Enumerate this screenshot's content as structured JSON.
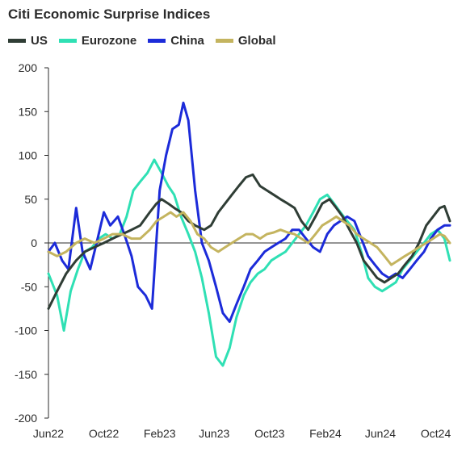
{
  "chart_data": {
    "type": "line",
    "title": "Citi Economic Surprise Indices",
    "xlabel": "",
    "ylabel": "",
    "ylim": [
      -200,
      200
    ],
    "yticks": [
      200,
      150,
      100,
      50,
      0,
      -50,
      -100,
      -150,
      -200
    ],
    "xticks": [
      "Jun22",
      "Oct22",
      "Feb23",
      "Jun23",
      "Oct23",
      "Feb24",
      "Jun24",
      "Oct24"
    ],
    "xrange": [
      "Jun22",
      "Nov24"
    ],
    "grid": false,
    "legend_position": "top",
    "series": [
      {
        "name": "US",
        "color": "#2f3d35",
        "points": [
          [
            "2022-06-01",
            -75
          ],
          [
            "2022-06-20",
            -55
          ],
          [
            "2022-07-10",
            -35
          ],
          [
            "2022-08-01",
            -20
          ],
          [
            "2022-08-20",
            -10
          ],
          [
            "2022-09-10",
            -5
          ],
          [
            "2022-10-01",
            0
          ],
          [
            "2022-10-20",
            5
          ],
          [
            "2022-11-10",
            10
          ],
          [
            "2022-12-01",
            15
          ],
          [
            "2022-12-20",
            20
          ],
          [
            "2023-01-10",
            35
          ],
          [
            "2023-01-25",
            45
          ],
          [
            "2023-02-05",
            50
          ],
          [
            "2023-02-20",
            45
          ],
          [
            "2023-03-05",
            40
          ],
          [
            "2023-03-20",
            35
          ],
          [
            "2023-04-05",
            25
          ],
          [
            "2023-04-20",
            20
          ],
          [
            "2023-05-10",
            15
          ],
          [
            "2023-05-25",
            20
          ],
          [
            "2023-06-10",
            35
          ],
          [
            "2023-06-25",
            45
          ],
          [
            "2023-07-10",
            55
          ],
          [
            "2023-07-25",
            65
          ],
          [
            "2023-08-10",
            75
          ],
          [
            "2023-08-25",
            78
          ],
          [
            "2023-09-10",
            65
          ],
          [
            "2023-09-25",
            60
          ],
          [
            "2023-10-10",
            55
          ],
          [
            "2023-10-25",
            50
          ],
          [
            "2023-11-10",
            45
          ],
          [
            "2023-11-25",
            40
          ],
          [
            "2023-12-10",
            25
          ],
          [
            "2023-12-25",
            15
          ],
          [
            "2024-01-10",
            30
          ],
          [
            "2024-01-25",
            45
          ],
          [
            "2024-02-10",
            50
          ],
          [
            "2024-02-25",
            40
          ],
          [
            "2024-03-10",
            30
          ],
          [
            "2024-03-25",
            15
          ],
          [
            "2024-04-10",
            0
          ],
          [
            "2024-04-25",
            -20
          ],
          [
            "2024-05-10",
            -30
          ],
          [
            "2024-05-25",
            -40
          ],
          [
            "2024-06-10",
            -45
          ],
          [
            "2024-06-25",
            -40
          ],
          [
            "2024-07-10",
            -35
          ],
          [
            "2024-07-25",
            -25
          ],
          [
            "2024-08-10",
            -15
          ],
          [
            "2024-08-25",
            0
          ],
          [
            "2024-09-10",
            20
          ],
          [
            "2024-09-25",
            30
          ],
          [
            "2024-10-10",
            40
          ],
          [
            "2024-10-20",
            42
          ],
          [
            "2024-11-01",
            25
          ]
        ]
      },
      {
        "name": "Eurozone",
        "color": "#2fe0b4",
        "points": [
          [
            "2022-06-01",
            -35
          ],
          [
            "2022-06-20",
            -60
          ],
          [
            "2022-07-05",
            -100
          ],
          [
            "2022-07-20",
            -55
          ],
          [
            "2022-08-05",
            -30
          ],
          [
            "2022-08-20",
            -10
          ],
          [
            "2022-09-05",
            -5
          ],
          [
            "2022-09-20",
            5
          ],
          [
            "2022-10-05",
            10
          ],
          [
            "2022-10-20",
            5
          ],
          [
            "2022-11-05",
            10
          ],
          [
            "2022-11-20",
            30
          ],
          [
            "2022-12-05",
            60
          ],
          [
            "2022-12-20",
            70
          ],
          [
            "2023-01-05",
            80
          ],
          [
            "2023-01-20",
            95
          ],
          [
            "2023-02-05",
            80
          ],
          [
            "2023-02-20",
            65
          ],
          [
            "2023-03-05",
            55
          ],
          [
            "2023-03-20",
            30
          ],
          [
            "2023-04-05",
            10
          ],
          [
            "2023-04-20",
            -10
          ],
          [
            "2023-05-05",
            -40
          ],
          [
            "2023-05-20",
            -80
          ],
          [
            "2023-06-05",
            -130
          ],
          [
            "2023-06-20",
            -140
          ],
          [
            "2023-07-05",
            -120
          ],
          [
            "2023-07-20",
            -85
          ],
          [
            "2023-08-05",
            -60
          ],
          [
            "2023-08-20",
            -45
          ],
          [
            "2023-09-05",
            -35
          ],
          [
            "2023-09-20",
            -30
          ],
          [
            "2023-10-05",
            -20
          ],
          [
            "2023-10-20",
            -15
          ],
          [
            "2023-11-05",
            -10
          ],
          [
            "2023-11-20",
            0
          ],
          [
            "2023-12-05",
            10
          ],
          [
            "2023-12-20",
            20
          ],
          [
            "2024-01-05",
            35
          ],
          [
            "2024-01-20",
            50
          ],
          [
            "2024-02-05",
            55
          ],
          [
            "2024-02-20",
            45
          ],
          [
            "2024-03-05",
            35
          ],
          [
            "2024-03-20",
            25
          ],
          [
            "2024-04-05",
            15
          ],
          [
            "2024-04-20",
            -10
          ],
          [
            "2024-05-05",
            -40
          ],
          [
            "2024-05-20",
            -50
          ],
          [
            "2024-06-05",
            -55
          ],
          [
            "2024-06-20",
            -50
          ],
          [
            "2024-07-05",
            -45
          ],
          [
            "2024-07-20",
            -30
          ],
          [
            "2024-08-05",
            -20
          ],
          [
            "2024-08-20",
            -10
          ],
          [
            "2024-09-05",
            0
          ],
          [
            "2024-09-20",
            10
          ],
          [
            "2024-10-05",
            15
          ],
          [
            "2024-10-20",
            5
          ],
          [
            "2024-11-01",
            -20
          ]
        ]
      },
      {
        "name": "China",
        "color": "#1c2bd9",
        "points": [
          [
            "2022-06-01",
            -10
          ],
          [
            "2022-06-15",
            0
          ],
          [
            "2022-07-01",
            -20
          ],
          [
            "2022-07-15",
            -30
          ],
          [
            "2022-08-01",
            40
          ],
          [
            "2022-08-15",
            -10
          ],
          [
            "2022-09-01",
            -30
          ],
          [
            "2022-09-15",
            0
          ],
          [
            "2022-10-01",
            35
          ],
          [
            "2022-10-15",
            20
          ],
          [
            "2022-11-01",
            30
          ],
          [
            "2022-11-15",
            10
          ],
          [
            "2022-12-01",
            -15
          ],
          [
            "2022-12-15",
            -50
          ],
          [
            "2023-01-01",
            -60
          ],
          [
            "2023-01-15",
            -75
          ],
          [
            "2023-02-01",
            60
          ],
          [
            "2023-02-15",
            100
          ],
          [
            "2023-03-01",
            130
          ],
          [
            "2023-03-15",
            135
          ],
          [
            "2023-03-25",
            160
          ],
          [
            "2023-04-05",
            140
          ],
          [
            "2023-04-20",
            60
          ],
          [
            "2023-05-05",
            0
          ],
          [
            "2023-05-20",
            -20
          ],
          [
            "2023-06-05",
            -50
          ],
          [
            "2023-06-20",
            -80
          ],
          [
            "2023-07-05",
            -90
          ],
          [
            "2023-07-20",
            -70
          ],
          [
            "2023-08-05",
            -50
          ],
          [
            "2023-08-20",
            -30
          ],
          [
            "2023-09-05",
            -20
          ],
          [
            "2023-09-20",
            -10
          ],
          [
            "2023-10-05",
            -5
          ],
          [
            "2023-10-20",
            0
          ],
          [
            "2023-11-05",
            5
          ],
          [
            "2023-11-20",
            15
          ],
          [
            "2023-12-05",
            15
          ],
          [
            "2023-12-20",
            5
          ],
          [
            "2024-01-05",
            -5
          ],
          [
            "2024-01-20",
            -10
          ],
          [
            "2024-02-05",
            10
          ],
          [
            "2024-02-20",
            20
          ],
          [
            "2024-03-05",
            25
          ],
          [
            "2024-03-20",
            30
          ],
          [
            "2024-04-05",
            25
          ],
          [
            "2024-04-20",
            5
          ],
          [
            "2024-05-05",
            -15
          ],
          [
            "2024-05-20",
            -25
          ],
          [
            "2024-06-05",
            -35
          ],
          [
            "2024-06-20",
            -40
          ],
          [
            "2024-07-05",
            -35
          ],
          [
            "2024-07-20",
            -40
          ],
          [
            "2024-08-05",
            -30
          ],
          [
            "2024-08-20",
            -20
          ],
          [
            "2024-09-05",
            -10
          ],
          [
            "2024-09-20",
            5
          ],
          [
            "2024-10-05",
            15
          ],
          [
            "2024-10-20",
            20
          ],
          [
            "2024-11-01",
            20
          ]
        ]
      },
      {
        "name": "Global",
        "color": "#c4b45f",
        "points": [
          [
            "2022-06-01",
            -10
          ],
          [
            "2022-06-20",
            -15
          ],
          [
            "2022-07-10",
            -10
          ],
          [
            "2022-08-01",
            0
          ],
          [
            "2022-08-20",
            5
          ],
          [
            "2022-09-10",
            0
          ],
          [
            "2022-10-01",
            5
          ],
          [
            "2022-10-20",
            10
          ],
          [
            "2022-11-10",
            10
          ],
          [
            "2022-12-01",
            5
          ],
          [
            "2022-12-20",
            5
          ],
          [
            "2023-01-10",
            15
          ],
          [
            "2023-01-25",
            25
          ],
          [
            "2023-02-10",
            30
          ],
          [
            "2023-02-25",
            35
          ],
          [
            "2023-03-10",
            30
          ],
          [
            "2023-03-25",
            35
          ],
          [
            "2023-04-10",
            25
          ],
          [
            "2023-04-25",
            10
          ],
          [
            "2023-05-10",
            5
          ],
          [
            "2023-05-25",
            -5
          ],
          [
            "2023-06-10",
            -10
          ],
          [
            "2023-06-25",
            -5
          ],
          [
            "2023-07-10",
            0
          ],
          [
            "2023-07-25",
            5
          ],
          [
            "2023-08-10",
            10
          ],
          [
            "2023-08-25",
            10
          ],
          [
            "2023-09-10",
            5
          ],
          [
            "2023-09-25",
            10
          ],
          [
            "2023-10-10",
            12
          ],
          [
            "2023-10-25",
            15
          ],
          [
            "2023-11-10",
            12
          ],
          [
            "2023-11-25",
            10
          ],
          [
            "2023-12-10",
            5
          ],
          [
            "2023-12-25",
            0
          ],
          [
            "2024-01-10",
            10
          ],
          [
            "2024-01-25",
            20
          ],
          [
            "2024-02-10",
            25
          ],
          [
            "2024-02-25",
            30
          ],
          [
            "2024-03-10",
            25
          ],
          [
            "2024-03-25",
            20
          ],
          [
            "2024-04-10",
            10
          ],
          [
            "2024-04-25",
            5
          ],
          [
            "2024-05-10",
            0
          ],
          [
            "2024-05-25",
            -5
          ],
          [
            "2024-06-10",
            -15
          ],
          [
            "2024-06-25",
            -25
          ],
          [
            "2024-07-10",
            -20
          ],
          [
            "2024-07-25",
            -15
          ],
          [
            "2024-08-10",
            -10
          ],
          [
            "2024-08-25",
            -5
          ],
          [
            "2024-09-10",
            0
          ],
          [
            "2024-09-25",
            5
          ],
          [
            "2024-10-10",
            10
          ],
          [
            "2024-10-20",
            8
          ],
          [
            "2024-11-01",
            0
          ]
        ]
      }
    ]
  }
}
